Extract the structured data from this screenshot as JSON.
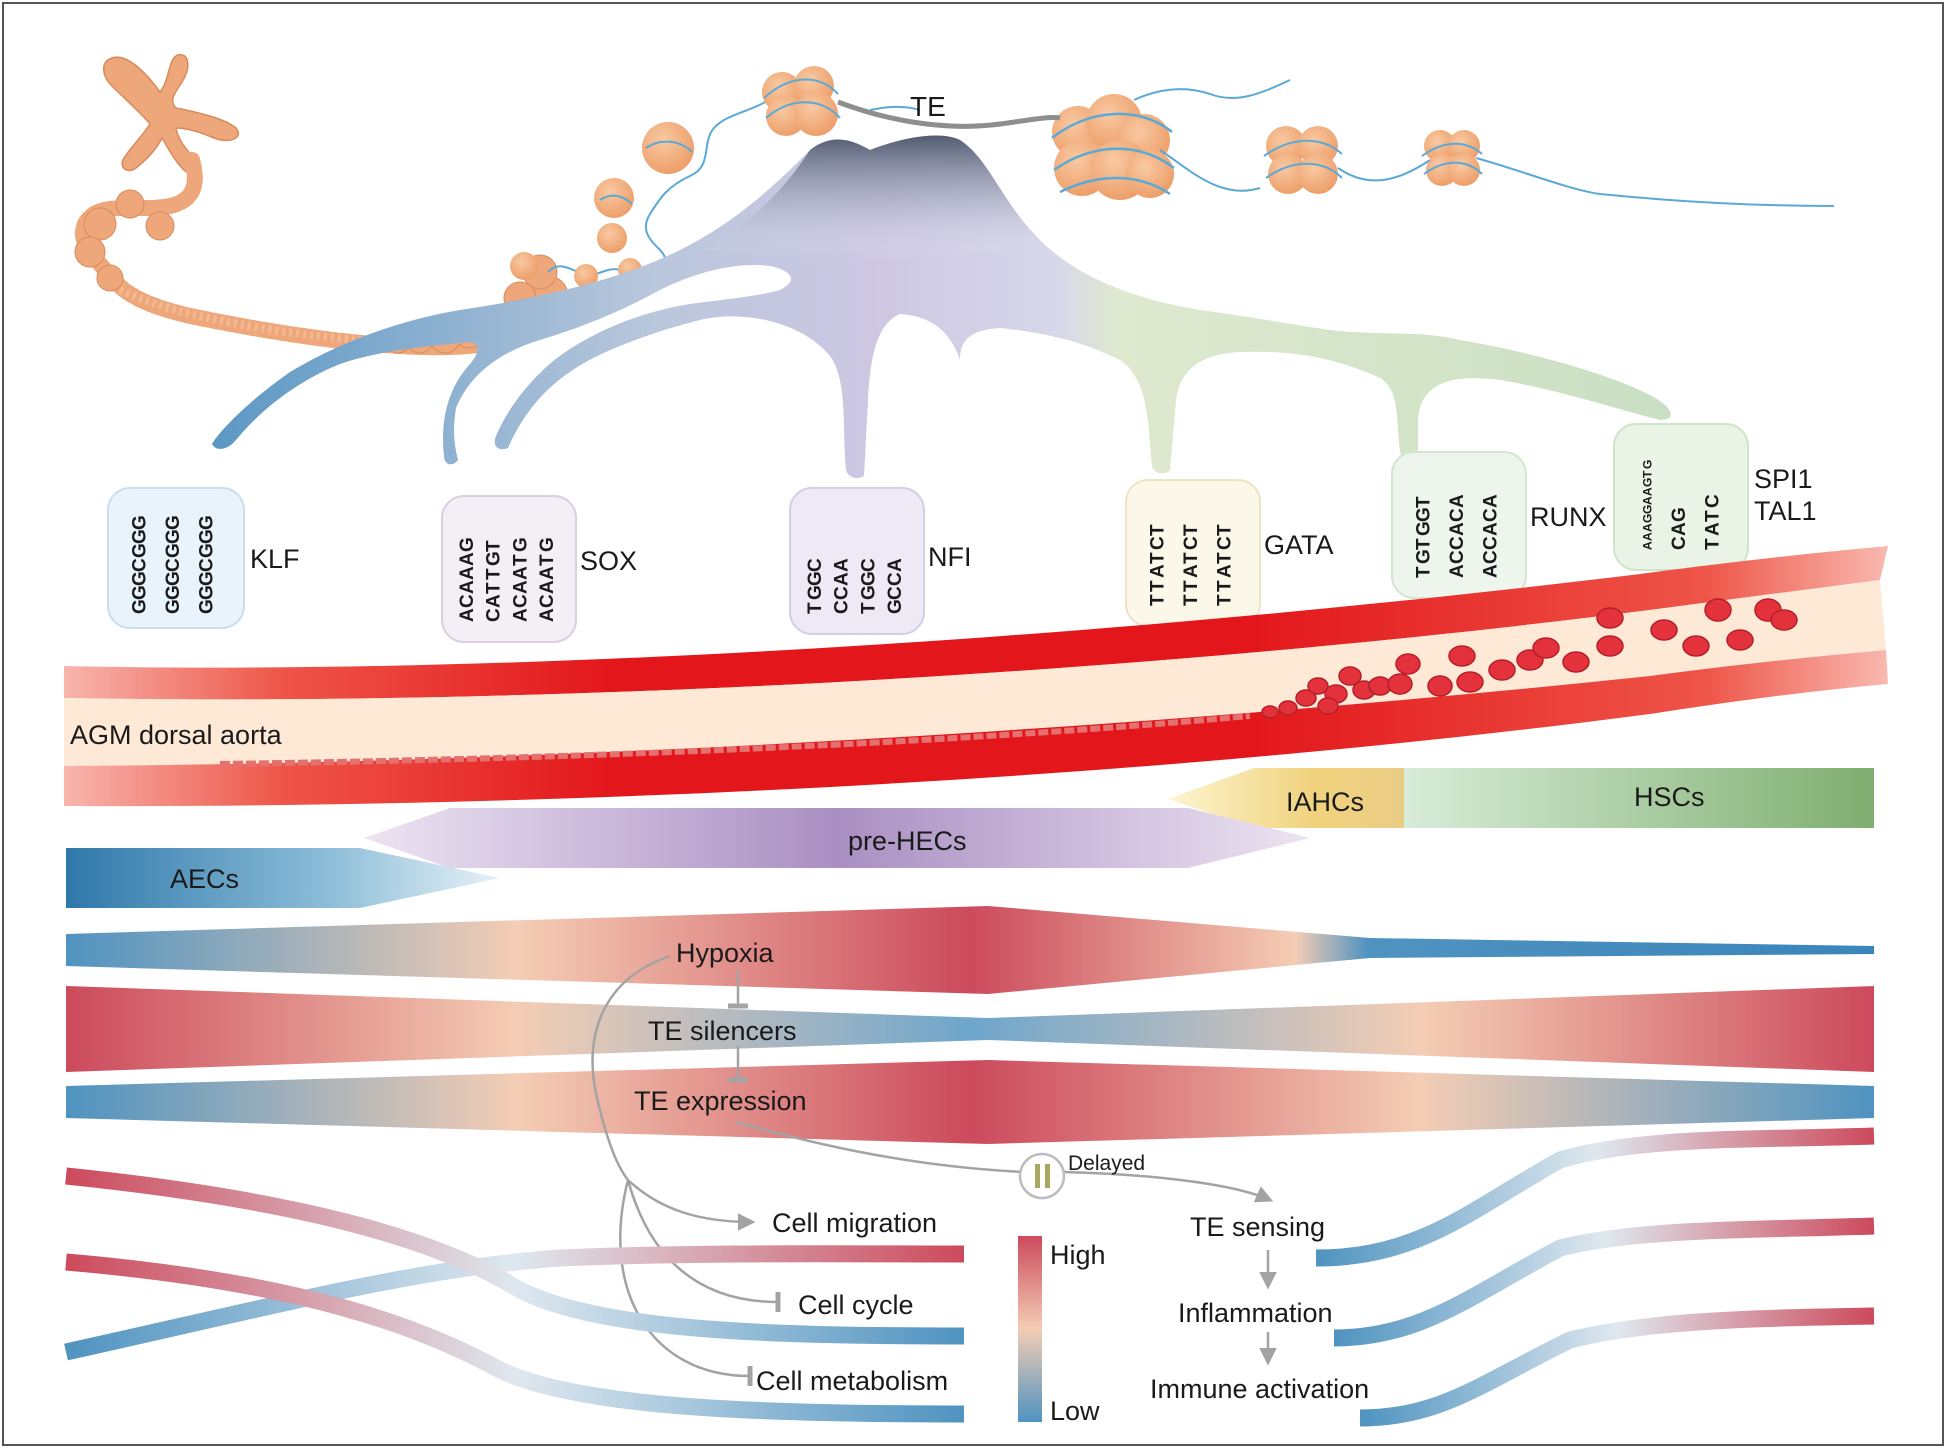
{
  "chromatin": {
    "te_label": "TE"
  },
  "tf_motifs": [
    {
      "label": "KLF",
      "motif_rows": [
        "GGGCGGG",
        "GGGCGGG",
        "GGGCGGG"
      ],
      "tint": "#e8f3fb"
    },
    {
      "label": "SOX",
      "motif_rows": [
        "ACAAAG",
        "CATTGT",
        "ACAATG",
        "ACAATG"
      ],
      "tint": "#f4eef5"
    },
    {
      "label": "NFI",
      "motif_rows": [
        "TGGC",
        "CCAA",
        "TGGC",
        "GCCA"
      ],
      "tint": "#efe9f6"
    },
    {
      "label": "GATA",
      "motif_rows": [
        "TTATCT",
        "TTATCT",
        "TTATCT"
      ],
      "tint": "#fbf7e9"
    },
    {
      "label": "RUNX",
      "motif_rows": [
        "TGTGGT",
        "ACCACA",
        "ACCACA"
      ],
      "tint": "#edf5ec"
    },
    {
      "label": "SPI1",
      "label2": "TAL1",
      "motif_rows": [
        "AAAGGAAGTG",
        "CAG",
        "TATC"
      ],
      "tint": "#e9f3e6"
    }
  ],
  "aorta": {
    "label": "AGM  dorsal aorta"
  },
  "cell_types": {
    "aecs": "AECs",
    "pre_hecs": "pre-HECs",
    "iahcs": "IAHCs",
    "hscs": "HSCs"
  },
  "regulators": {
    "hypoxia": "Hypoxia",
    "te_silencers": "TE silencers",
    "te_expression": "TE expression"
  },
  "processes": {
    "cell_migration": "Cell migration",
    "cell_cycle": "Cell cycle",
    "cell_metabolism": "Cell metabolism"
  },
  "delay": {
    "label": "Delayed",
    "icon": "pause-icon"
  },
  "immune": {
    "te_sensing": "TE sensing",
    "inflammation": "Inflammation",
    "immune_activation": "Immune activation"
  },
  "legend": {
    "high": "High",
    "low": "Low"
  },
  "colors": {
    "high": "#cc4a5c",
    "mid": "#f4cdb4",
    "low": "#4f93c0",
    "aorta_red": "#e3171b",
    "aorta_inner": "#fde9d6",
    "chromatin": "#f3ab78",
    "dna": "#5aa9d6"
  }
}
